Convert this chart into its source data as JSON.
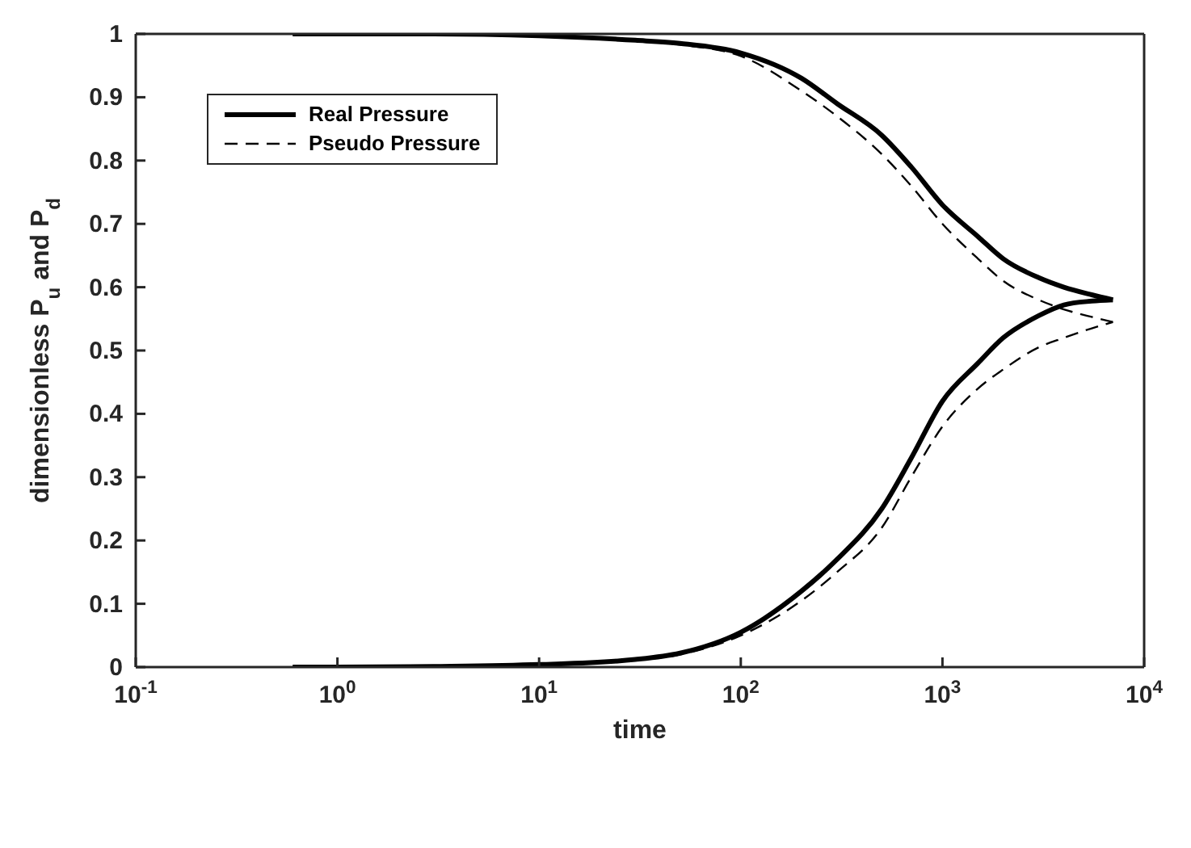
{
  "chart_data": {
    "type": "line",
    "xlabel": "time",
    "ylabel": "dimensionless P$_{u}$ and P$_{d}$",
    "log": "x",
    "xlim": [
      0.1,
      10000
    ],
    "xticks": [
      {
        "value": 0.1,
        "label": "10$^{-1}$"
      },
      {
        "value": 1,
        "label": "10$^{0}$"
      },
      {
        "value": 10,
        "label": "10$^{1}$"
      },
      {
        "value": 100,
        "label": "10$^{2}$"
      },
      {
        "value": 1000,
        "label": "10$^{3}$"
      },
      {
        "value": 10000,
        "label": "10$^{4}$"
      }
    ],
    "ylim": [
      0,
      1
    ],
    "yticks": [
      0,
      0.1,
      0.2,
      0.3,
      0.4,
      0.5,
      0.6,
      0.7,
      0.8,
      0.9,
      1
    ],
    "grid": false,
    "legend": "top left",
    "marker": "none",
    "x": [
      0.6,
      1,
      3,
      10,
      30,
      50,
      100,
      200,
      300,
      500,
      700,
      1000,
      1500,
      2000,
      3000,
      4000,
      5500,
      7000
    ],
    "series": [
      {
        "name": "Real Pressure",
        "color": "#000000",
        "line_style": "solid",
        "values": [
          1,
          1,
          1,
          0.997,
          0.99,
          0.985,
          0.97,
          0.93,
          0.89,
          0.84,
          0.79,
          0.73,
          0.68,
          0.645,
          0.615,
          0.6,
          0.588,
          0.58
        ]
      },
      {
        "name": "Pseudo Pressure",
        "color": "#000000",
        "line_style": "dashed",
        "values": [
          1,
          1,
          1,
          0.997,
          0.99,
          0.983,
          0.965,
          0.91,
          0.87,
          0.81,
          0.76,
          0.7,
          0.645,
          0.61,
          0.58,
          0.565,
          0.553,
          0.545
        ]
      },
      {
        "color": "#000000",
        "line_style": "solid",
        "values": [
          0,
          0,
          0.001,
          0.004,
          0.012,
          0.022,
          0.055,
          0.12,
          0.17,
          0.25,
          0.33,
          0.42,
          0.48,
          0.52,
          0.555,
          0.572,
          0.578,
          0.58
        ]
      },
      {
        "color": "#000000",
        "line_style": "dashed",
        "values": [
          0,
          0,
          0.001,
          0.004,
          0.011,
          0.02,
          0.05,
          0.105,
          0.15,
          0.22,
          0.3,
          0.38,
          0.44,
          0.47,
          0.505,
          0.52,
          0.535,
          0.545
        ]
      }
    ]
  }
}
